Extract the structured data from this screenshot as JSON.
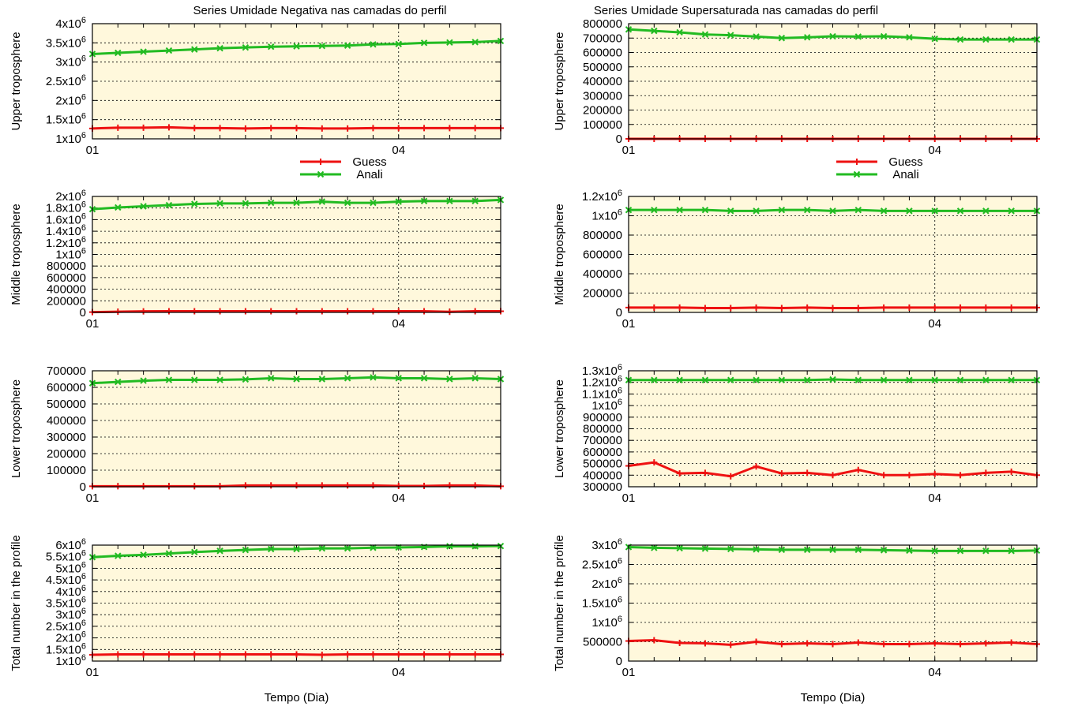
{
  "colors": {
    "plot_background": "#fff8dc",
    "guess": "#ee1111",
    "anali": "#22bb22",
    "grid": "#000000"
  },
  "legend": {
    "guess_label": "Guess",
    "anali_label": "Anali"
  },
  "chart_data": [
    {
      "type": "line",
      "panel": "left-1",
      "title": "Series Umidade Negativa nas camadas do perfil",
      "ylabel": "Upper troposphere",
      "xlabel": "",
      "xticks": [
        "01",
        "04"
      ],
      "ylim": [
        1000000,
        4000000
      ],
      "yticks": [
        {
          "v": 1000000,
          "m": "1",
          "e": "6"
        },
        {
          "v": 1500000,
          "m": "1.5",
          "e": "6"
        },
        {
          "v": 2000000,
          "m": "2",
          "e": "6"
        },
        {
          "v": 2500000,
          "m": "2.5",
          "e": "6"
        },
        {
          "v": 3000000,
          "m": "3",
          "e": "6"
        },
        {
          "v": 3500000,
          "m": "3.5",
          "e": "6"
        },
        {
          "v": 4000000,
          "m": "4",
          "e": "6"
        }
      ],
      "series": [
        {
          "name": "Guess",
          "values": [
            1270000,
            1290000,
            1290000,
            1300000,
            1280000,
            1280000,
            1270000,
            1280000,
            1280000,
            1270000,
            1270000,
            1280000,
            1280000,
            1280000,
            1280000,
            1280000,
            1280000
          ]
        },
        {
          "name": "Anali",
          "values": [
            3210000,
            3240000,
            3270000,
            3300000,
            3330000,
            3360000,
            3380000,
            3400000,
            3410000,
            3420000,
            3430000,
            3460000,
            3470000,
            3500000,
            3510000,
            3520000,
            3550000
          ]
        }
      ]
    },
    {
      "type": "line",
      "panel": "right-1",
      "title": "Series Umidade Supersaturada nas camadas do perfil",
      "ylabel": "Upper troposphere",
      "xlabel": "",
      "xticks": [
        "01",
        "04"
      ],
      "ylim": [
        0,
        800000
      ],
      "yticks": [
        {
          "v": 0,
          "m": "0"
        },
        {
          "v": 100000,
          "m": "100000"
        },
        {
          "v": 200000,
          "m": "200000"
        },
        {
          "v": 300000,
          "m": "300000"
        },
        {
          "v": 400000,
          "m": "400000"
        },
        {
          "v": 500000,
          "m": "500000"
        },
        {
          "v": 600000,
          "m": "600000"
        },
        {
          "v": 700000,
          "m": "700000"
        },
        {
          "v": 800000,
          "m": "800000"
        }
      ],
      "series": [
        {
          "name": "Guess",
          "values": [
            0,
            0,
            0,
            0,
            0,
            0,
            0,
            0,
            0,
            0,
            0,
            0,
            0,
            0,
            0,
            0,
            0
          ]
        },
        {
          "name": "Anali",
          "values": [
            760000,
            750000,
            740000,
            725000,
            720000,
            710000,
            700000,
            705000,
            712000,
            710000,
            712000,
            705000,
            695000,
            690000,
            690000,
            690000,
            690000
          ]
        }
      ]
    },
    {
      "type": "line",
      "panel": "left-2",
      "ylabel": "Middle troposphere",
      "xticks": [
        "01",
        "04"
      ],
      "ylim": [
        0,
        2000000
      ],
      "yticks": [
        {
          "v": 0,
          "m": "0"
        },
        {
          "v": 200000,
          "m": "200000"
        },
        {
          "v": 400000,
          "m": "400000"
        },
        {
          "v": 600000,
          "m": "600000"
        },
        {
          "v": 800000,
          "m": "800000"
        },
        {
          "v": 1000000,
          "m": "1",
          "e": "6"
        },
        {
          "v": 1200000,
          "m": "1.2",
          "e": "6"
        },
        {
          "v": 1400000,
          "m": "1.4",
          "e": "6"
        },
        {
          "v": 1600000,
          "m": "1.6",
          "e": "6"
        },
        {
          "v": 1800000,
          "m": "1.8",
          "e": "6"
        },
        {
          "v": 2000000,
          "m": "2",
          "e": "6"
        }
      ],
      "series": [
        {
          "name": "Guess",
          "values": [
            5000,
            12000,
            18000,
            20000,
            20000,
            20000,
            20000,
            20000,
            20000,
            20000,
            20000,
            20000,
            20000,
            20000,
            10000,
            20000,
            20000
          ]
        },
        {
          "name": "Anali",
          "values": [
            1780000,
            1810000,
            1830000,
            1850000,
            1870000,
            1880000,
            1880000,
            1890000,
            1890000,
            1910000,
            1890000,
            1890000,
            1910000,
            1920000,
            1920000,
            1920000,
            1940000
          ]
        }
      ]
    },
    {
      "type": "line",
      "panel": "right-2",
      "ylabel": "Middle troposphere",
      "xticks": [
        "01",
        "04"
      ],
      "ylim": [
        0,
        1200000
      ],
      "yticks": [
        {
          "v": 0,
          "m": "0"
        },
        {
          "v": 200000,
          "m": "200000"
        },
        {
          "v": 400000,
          "m": "400000"
        },
        {
          "v": 600000,
          "m": "600000"
        },
        {
          "v": 800000,
          "m": "800000"
        },
        {
          "v": 1000000,
          "m": "1",
          "e": "6"
        },
        {
          "v": 1200000,
          "m": "1.2",
          "e": "6"
        }
      ],
      "series": [
        {
          "name": "Guess",
          "values": [
            50000,
            50000,
            50000,
            45000,
            45000,
            50000,
            45000,
            50000,
            45000,
            45000,
            50000,
            50000,
            50000,
            50000,
            50000,
            50000,
            50000
          ]
        },
        {
          "name": "Anali",
          "values": [
            1060000,
            1060000,
            1060000,
            1060000,
            1050000,
            1050000,
            1060000,
            1060000,
            1050000,
            1060000,
            1050000,
            1050000,
            1050000,
            1050000,
            1050000,
            1050000,
            1050000
          ]
        }
      ]
    },
    {
      "type": "line",
      "panel": "left-3",
      "ylabel": "Lower troposphere",
      "xticks": [
        "01",
        "04"
      ],
      "ylim": [
        0,
        700000
      ],
      "yticks": [
        {
          "v": 0,
          "m": "0"
        },
        {
          "v": 100000,
          "m": "100000"
        },
        {
          "v": 200000,
          "m": "200000"
        },
        {
          "v": 300000,
          "m": "300000"
        },
        {
          "v": 400000,
          "m": "400000"
        },
        {
          "v": 500000,
          "m": "500000"
        },
        {
          "v": 600000,
          "m": "600000"
        },
        {
          "v": 700000,
          "m": "700000"
        }
      ],
      "series": [
        {
          "name": "Guess",
          "values": [
            3000,
            3000,
            3000,
            3000,
            3000,
            3000,
            8000,
            8000,
            8000,
            8000,
            8000,
            8000,
            5000,
            5000,
            8000,
            8000,
            3000
          ]
        },
        {
          "name": "Anali",
          "values": [
            625000,
            633000,
            640000,
            645000,
            645000,
            645000,
            648000,
            655000,
            650000,
            650000,
            655000,
            660000,
            655000,
            655000,
            650000,
            655000,
            650000
          ]
        }
      ]
    },
    {
      "type": "line",
      "panel": "right-3",
      "ylabel": "Lower troposphere",
      "xticks": [
        "01",
        "04"
      ],
      "ylim": [
        300000,
        1300000
      ],
      "yticks": [
        {
          "v": 300000,
          "m": "300000"
        },
        {
          "v": 400000,
          "m": "400000"
        },
        {
          "v": 500000,
          "m": "500000"
        },
        {
          "v": 600000,
          "m": "600000"
        },
        {
          "v": 700000,
          "m": "700000"
        },
        {
          "v": 800000,
          "m": "800000"
        },
        {
          "v": 900000,
          "m": "900000"
        },
        {
          "v": 1000000,
          "m": "1",
          "e": "6"
        },
        {
          "v": 1100000,
          "m": "1.1",
          "e": "6"
        },
        {
          "v": 1200000,
          "m": "1.2",
          "e": "6"
        },
        {
          "v": 1300000,
          "m": "1.3",
          "e": "6"
        }
      ],
      "series": [
        {
          "name": "Guess",
          "values": [
            480000,
            510000,
            415000,
            420000,
            390000,
            475000,
            415000,
            420000,
            400000,
            445000,
            400000,
            400000,
            410000,
            400000,
            420000,
            430000,
            400000
          ]
        },
        {
          "name": "Anali",
          "values": [
            1220000,
            1220000,
            1220000,
            1220000,
            1220000,
            1220000,
            1220000,
            1220000,
            1225000,
            1220000,
            1220000,
            1220000,
            1220000,
            1220000,
            1220000,
            1220000,
            1220000
          ]
        }
      ]
    },
    {
      "type": "line",
      "panel": "left-4",
      "ylabel": "Total number in the profile",
      "xlabel": "Tempo (Dia)",
      "xticks": [
        "01",
        "04"
      ],
      "ylim": [
        1000000,
        6000000
      ],
      "yticks": [
        {
          "v": 1000000,
          "m": "1",
          "e": "6"
        },
        {
          "v": 1500000,
          "m": "1.5",
          "e": "6"
        },
        {
          "v": 2000000,
          "m": "2",
          "e": "6"
        },
        {
          "v": 2500000,
          "m": "2.5",
          "e": "6"
        },
        {
          "v": 3000000,
          "m": "3",
          "e": "6"
        },
        {
          "v": 3500000,
          "m": "3.5",
          "e": "6"
        },
        {
          "v": 4000000,
          "m": "4",
          "e": "6"
        },
        {
          "v": 4500000,
          "m": "4.5",
          "e": "6"
        },
        {
          "v": 5000000,
          "m": "5",
          "e": "6"
        },
        {
          "v": 5500000,
          "m": "5.5",
          "e": "6"
        },
        {
          "v": 6000000,
          "m": "6",
          "e": "6"
        }
      ],
      "series": [
        {
          "name": "Guess",
          "values": [
            1270000,
            1290000,
            1290000,
            1290000,
            1290000,
            1290000,
            1290000,
            1290000,
            1290000,
            1270000,
            1290000,
            1290000,
            1290000,
            1290000,
            1290000,
            1290000,
            1290000
          ]
        },
        {
          "name": "Anali",
          "values": [
            5480000,
            5540000,
            5580000,
            5640000,
            5700000,
            5750000,
            5790000,
            5830000,
            5830000,
            5860000,
            5860000,
            5890000,
            5900000,
            5920000,
            5950000,
            5950000,
            5960000
          ]
        }
      ]
    },
    {
      "type": "line",
      "panel": "right-4",
      "ylabel": "Total number in the profile",
      "xlabel": "Tempo (Dia)",
      "xticks": [
        "01",
        "04"
      ],
      "ylim": [
        0,
        3000000
      ],
      "yticks": [
        {
          "v": 0,
          "m": "0"
        },
        {
          "v": 500000,
          "m": "500000"
        },
        {
          "v": 1000000,
          "m": "1",
          "e": "6"
        },
        {
          "v": 1500000,
          "m": "1.5",
          "e": "6"
        },
        {
          "v": 2000000,
          "m": "2",
          "e": "6"
        },
        {
          "v": 2500000,
          "m": "2.5",
          "e": "6"
        },
        {
          "v": 3000000,
          "m": "3",
          "e": "6"
        }
      ],
      "series": [
        {
          "name": "Guess",
          "values": [
            520000,
            540000,
            470000,
            460000,
            420000,
            500000,
            440000,
            460000,
            440000,
            480000,
            440000,
            440000,
            460000,
            440000,
            460000,
            480000,
            440000
          ]
        },
        {
          "name": "Anali",
          "values": [
            2950000,
            2930000,
            2920000,
            2910000,
            2900000,
            2890000,
            2880000,
            2880000,
            2880000,
            2880000,
            2870000,
            2860000,
            2850000,
            2850000,
            2850000,
            2850000,
            2860000
          ]
        }
      ]
    }
  ]
}
